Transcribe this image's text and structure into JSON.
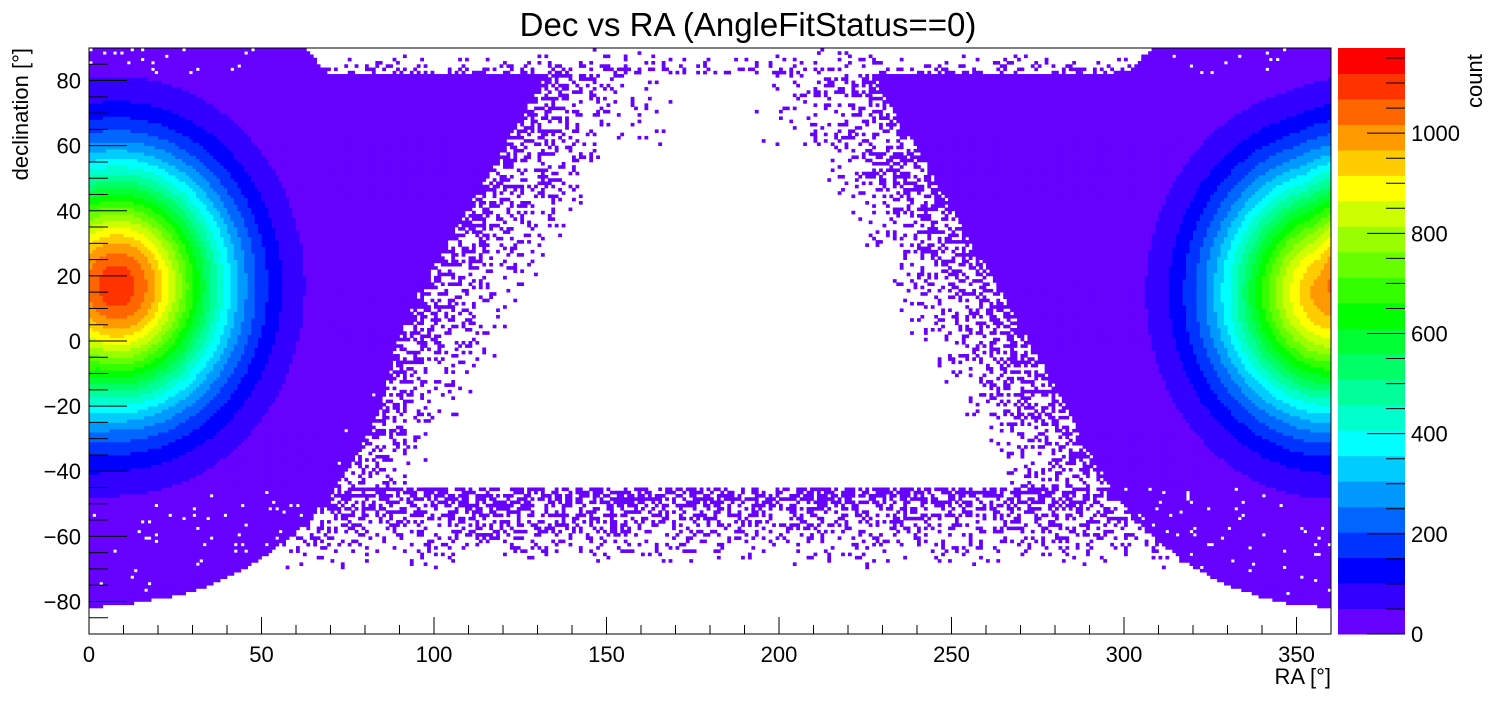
{
  "chart_data": {
    "type": "heatmap",
    "title": "Dec vs RA (AngleFitStatus==0)",
    "xlabel": "RA [°]",
    "ylabel": "declination [°]",
    "zlabel": "count",
    "xlim": [
      0,
      360
    ],
    "ylim": [
      -90,
      90
    ],
    "zlim": [
      0,
      1170
    ],
    "x_ticks": [
      "0",
      "50",
      "100",
      "150",
      "200",
      "250",
      "300",
      "350"
    ],
    "y_ticks": [
      "−80",
      "−60",
      "−40",
      "−20",
      "0",
      "20",
      "40",
      "60",
      "80"
    ],
    "z_ticks": [
      "0",
      "200",
      "400",
      "600",
      "800",
      "1000"
    ],
    "grid": false,
    "palette": [
      "#6600ff",
      "#3300ff",
      "#0000ff",
      "#0033ff",
      "#0066ff",
      "#0099ff",
      "#00ccff",
      "#00ffff",
      "#00ffcc",
      "#00ff99",
      "#00ff66",
      "#00ff33",
      "#00ff00",
      "#33ff00",
      "#66ff00",
      "#99ff00",
      "#ccff00",
      "#ffff00",
      "#ffcc00",
      "#ff9900",
      "#ff6600",
      "#ff3300",
      "#ff0000"
    ],
    "hotspots": [
      {
        "ra": 8,
        "dec": 17,
        "peak_count": 1100
      },
      {
        "ra": 360,
        "dec": 15,
        "peak_count": 1000
      }
    ],
    "distribution": "Counts concentrated near RA 0° and 360° (dec ~17°), falling off smoothly; band of low counts spanning dec −65° to 85°; near-empty region for RA ~100°–300° at low declination."
  }
}
